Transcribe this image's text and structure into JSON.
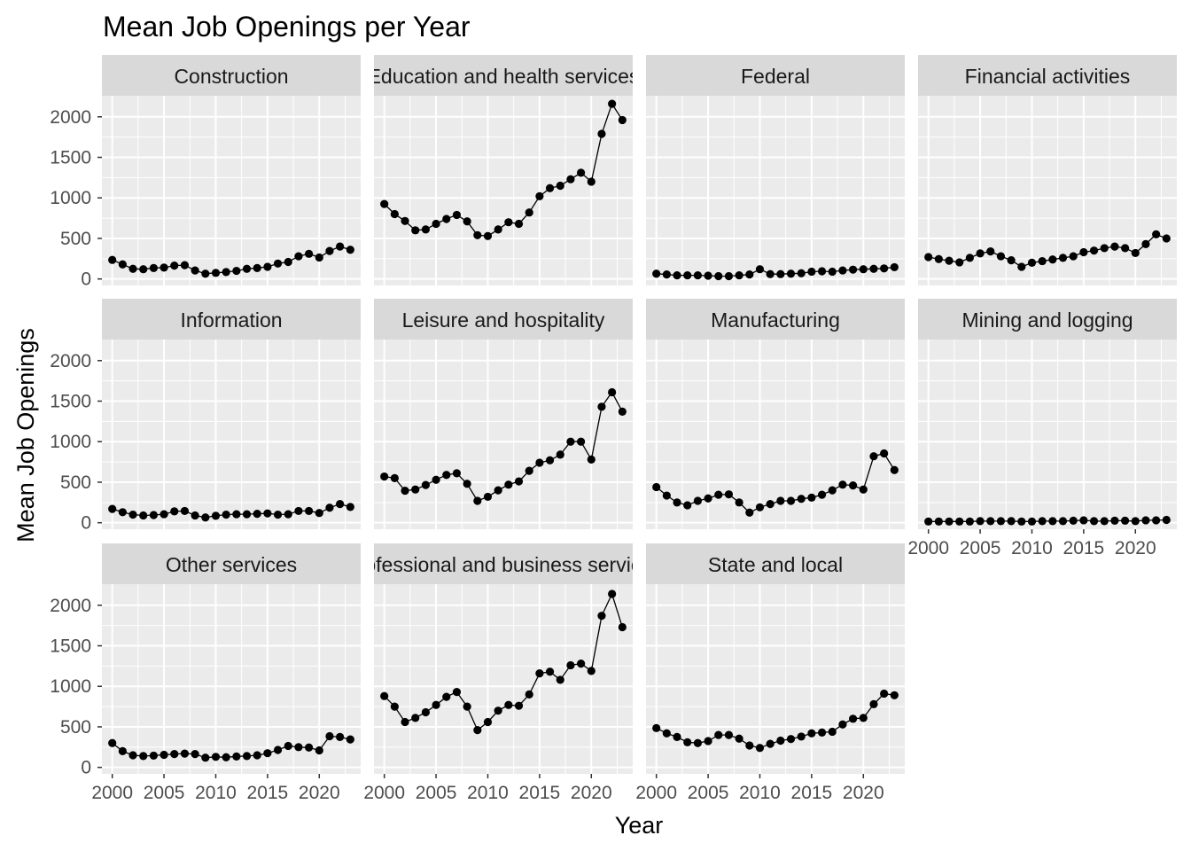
{
  "chart_data": {
    "type": "line",
    "title": "Mean Job Openings per Year",
    "xlabel": "Year",
    "ylabel": "Mean Job Openings",
    "x": [
      2000,
      2001,
      2002,
      2003,
      2004,
      2005,
      2006,
      2007,
      2008,
      2009,
      2010,
      2011,
      2012,
      2013,
      2014,
      2015,
      2016,
      2017,
      2018,
      2019,
      2020,
      2021,
      2022,
      2023
    ],
    "x_ticks": [
      2000,
      2005,
      2010,
      2015,
      2020
    ],
    "x_tick_labels": [
      "2000",
      "2005",
      "2010",
      "2015",
      "2020"
    ],
    "xlim": [
      1999,
      2024
    ],
    "y_ticks": [
      0,
      500,
      1000,
      1500,
      2000
    ],
    "y_tick_labels": [
      "0",
      "500",
      "1000",
      "1500",
      "2000"
    ],
    "ylim": [
      -80,
      2260
    ],
    "grid": true,
    "layout": "facet-wrap 4 columns",
    "series": [
      {
        "name": "Construction",
        "values": [
          235,
          180,
          125,
          120,
          135,
          140,
          165,
          170,
          105,
          65,
          75,
          85,
          100,
          125,
          135,
          150,
          190,
          210,
          280,
          310,
          265,
          345,
          400,
          360
        ]
      },
      {
        "name": "Education and health services",
        "values": [
          925,
          800,
          715,
          600,
          610,
          680,
          740,
          790,
          710,
          540,
          530,
          610,
          700,
          680,
          820,
          1020,
          1120,
          1150,
          1230,
          1310,
          1200,
          1790,
          2160,
          1960
        ]
      },
      {
        "name": "Federal",
        "values": [
          65,
          55,
          45,
          45,
          45,
          40,
          35,
          35,
          45,
          55,
          120,
          60,
          60,
          65,
          70,
          90,
          95,
          90,
          105,
          115,
          120,
          125,
          130,
          145
        ]
      },
      {
        "name": "Financial activities",
        "values": [
          270,
          245,
          225,
          205,
          260,
          315,
          340,
          280,
          230,
          150,
          200,
          220,
          240,
          260,
          280,
          330,
          350,
          380,
          400,
          380,
          320,
          430,
          550,
          500
        ]
      },
      {
        "name": "Information",
        "values": [
          170,
          130,
          100,
          90,
          95,
          105,
          140,
          145,
          90,
          65,
          85,
          100,
          105,
          105,
          110,
          115,
          100,
          105,
          145,
          145,
          120,
          185,
          230,
          195
        ]
      },
      {
        "name": "Leisure and hospitality",
        "values": [
          570,
          550,
          395,
          410,
          465,
          530,
          590,
          610,
          480,
          270,
          320,
          400,
          470,
          510,
          640,
          740,
          770,
          840,
          1000,
          1000,
          780,
          1430,
          1610,
          1370
        ]
      },
      {
        "name": "Manufacturing",
        "values": [
          440,
          335,
          250,
          215,
          270,
          300,
          345,
          350,
          250,
          125,
          190,
          230,
          270,
          270,
          295,
          310,
          345,
          400,
          470,
          460,
          410,
          820,
          855,
          650
        ]
      },
      {
        "name": "Mining and logging",
        "values": [
          15,
          15,
          15,
          15,
          15,
          20,
          20,
          20,
          20,
          15,
          15,
          20,
          20,
          20,
          25,
          30,
          20,
          20,
          25,
          25,
          20,
          30,
          30,
          35
        ]
      },
      {
        "name": "Other services",
        "values": [
          300,
          200,
          150,
          140,
          145,
          155,
          165,
          170,
          165,
          120,
          130,
          125,
          135,
          140,
          150,
          175,
          215,
          265,
          250,
          245,
          210,
          385,
          375,
          345
        ]
      },
      {
        "name": "Professional and business services",
        "values": [
          880,
          750,
          560,
          610,
          680,
          770,
          870,
          930,
          750,
          460,
          560,
          700,
          770,
          760,
          900,
          1160,
          1180,
          1080,
          1260,
          1280,
          1190,
          1870,
          2140,
          1730
        ]
      },
      {
        "name": "State and local",
        "values": [
          485,
          420,
          375,
          310,
          300,
          325,
          400,
          400,
          355,
          270,
          240,
          290,
          330,
          350,
          380,
          420,
          430,
          440,
          530,
          600,
          610,
          780,
          910,
          890
        ]
      }
    ]
  }
}
